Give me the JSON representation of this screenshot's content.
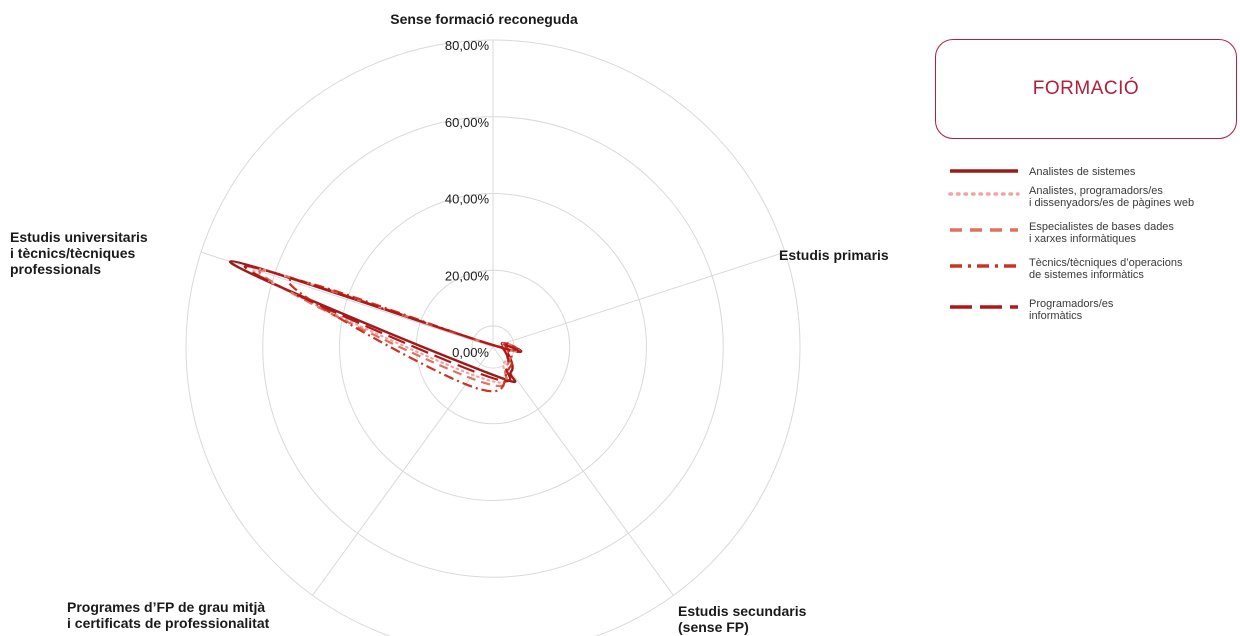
{
  "title_box": {
    "label": "FORMACIÓ",
    "color": "#b0203a"
  },
  "chart_data": {
    "type": "radar",
    "categories": [
      "Sense formació reconeguda",
      "Estudis primaris",
      "Estudis secundaris (sense FP)",
      "Programes d’FP de grau mitjà i certificats de professionalitat",
      "Estudis universitaris i tècnics/tècniques professionals"
    ],
    "category_lines": [
      [
        "Sense formació reconeguda"
      ],
      [
        "Estudis primaris"
      ],
      [
        "Estudis secundaris",
        "(sense FP)"
      ],
      [
        "Programes d’FP de grau mitjà",
        "i certificats de professionalitat"
      ],
      [
        "Estudis universitaris",
        "i tècnics/tècniques",
        "professionals"
      ]
    ],
    "r_range": [
      0,
      80
    ],
    "ticks": [
      0,
      20,
      40,
      60,
      80
    ],
    "tick_labels": [
      "0,00%",
      "20,00%",
      "40,00%",
      "60,00%",
      "80,00%"
    ],
    "grid": true,
    "legend_position": "right",
    "series": [
      {
        "name": "Analistes de sistemes",
        "values": [
          0.5,
          2.5,
          8,
          7,
          72
        ],
        "color": "#9b1b1b",
        "style": "solid"
      },
      {
        "name": "Analistes, programadors/es i dissenyadors/es de pàgines web",
        "values": [
          0.5,
          2.5,
          5,
          9,
          66
        ],
        "color": "#f0a5a5",
        "style": "dotted"
      },
      {
        "name": "Especialistes de bases dades i xarxes informàtiques",
        "values": [
          0.5,
          3,
          6,
          10,
          64
        ],
        "color": "#e07060",
        "style": "dashed"
      },
      {
        "name": "Tècnics/tècniques d’operacions de sistemes informàtics",
        "values": [
          0.5,
          3,
          7,
          12,
          56
        ],
        "color": "#cc3322",
        "style": "dashdot"
      },
      {
        "name": "Programadors/es informàtics",
        "values": [
          0.5,
          2,
          6,
          8,
          68
        ],
        "color": "#b01818",
        "style": "longdash"
      }
    ],
    "legend_lines": [
      [
        "Analistes de sistemes"
      ],
      [
        "Analistes, programadors/es",
        "i dissenyadors/es de pàgines web"
      ],
      [
        "Especialistes de bases dades",
        " i xarxes informàtiques"
      ],
      [
        "Tècnics/tècniques d’operacions",
        "de sistemes informàtics"
      ],
      [
        "Programadors/es",
        "informàtics"
      ]
    ]
  }
}
